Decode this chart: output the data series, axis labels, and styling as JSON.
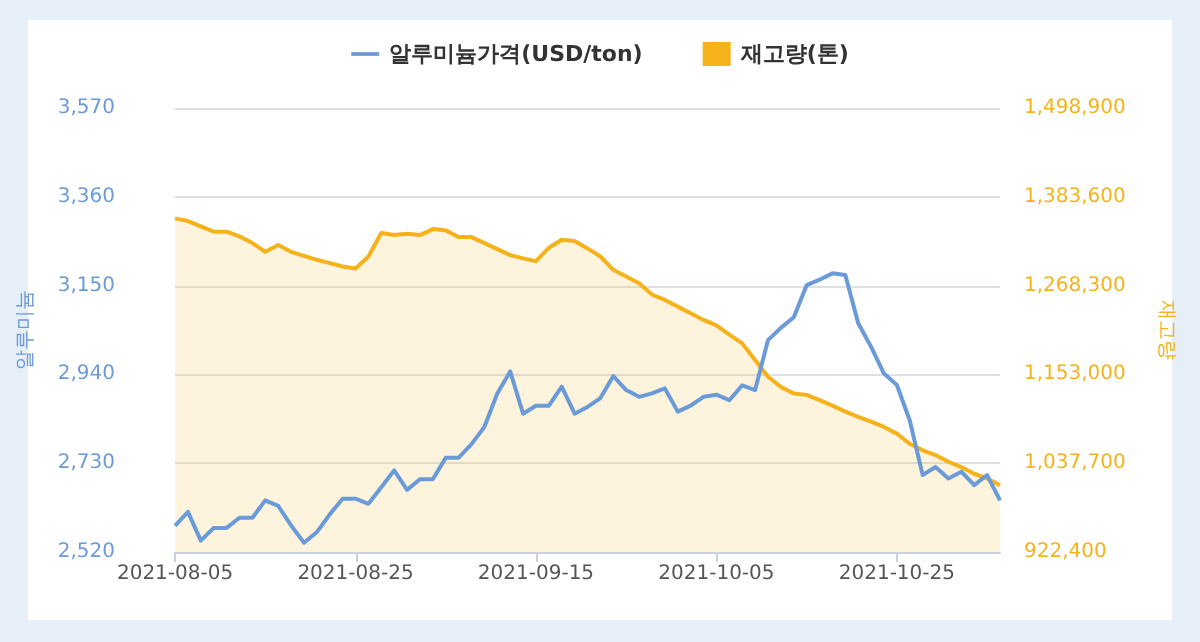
{
  "chart_data": {
    "type": "line",
    "categories": [
      "2021-08-05",
      null,
      null,
      null,
      null,
      null,
      null,
      null,
      null,
      null,
      null,
      null,
      null,
      null,
      "2021-08-25",
      null,
      null,
      null,
      null,
      null,
      null,
      null,
      null,
      null,
      null,
      null,
      null,
      null,
      "2021-09-15",
      null,
      null,
      null,
      null,
      null,
      null,
      null,
      null,
      null,
      null,
      null,
      null,
      null,
      "2021-10-05",
      null,
      null,
      null,
      null,
      null,
      null,
      null,
      null,
      null,
      null,
      null,
      null,
      null,
      "2021-10-25",
      null,
      null,
      null,
      null,
      null,
      null,
      null,
      null
    ],
    "series": [
      {
        "name": "알루미늄가격(USD/ton)",
        "color": "#6a9bd8",
        "values": [
          2582,
          2615,
          2547,
          2577,
          2577,
          2601,
          2601,
          2642,
          2629,
          2583,
          2542,
          2567,
          2609,
          2646,
          2646,
          2634,
          2673,
          2713,
          2667,
          2692,
          2692,
          2743,
          2743,
          2775,
          2816,
          2895,
          2947,
          2847,
          2866,
          2866,
          2911,
          2847,
          2863,
          2884,
          2936,
          2903,
          2887,
          2895,
          2907,
          2852,
          2866,
          2887,
          2892,
          2879,
          2914,
          2903,
          3021,
          3050,
          3075,
          3151,
          3164,
          3179,
          3175,
          3061,
          3005,
          2942,
          2915,
          2831,
          2702,
          2721,
          2694,
          2710,
          2678,
          2702,
          2642
        ]
      },
      {
        "name": "재고량(톤)",
        "type": "area",
        "axis": "y2",
        "color": "#f5b21b",
        "values": [
          1355600,
          1352100,
          1345200,
          1338300,
          1338300,
          1332200,
          1323500,
          1312200,
          1320900,
          1312200,
          1307000,
          1301800,
          1297500,
          1293100,
          1290500,
          1306100,
          1336500,
          1333900,
          1335700,
          1333900,
          1341700,
          1340000,
          1331300,
          1331300,
          1323500,
          1315700,
          1307900,
          1303600,
          1300100,
          1317400,
          1327900,
          1326100,
          1316600,
          1306100,
          1288800,
          1280100,
          1271400,
          1256700,
          1249700,
          1241000,
          1232300,
          1223700,
          1216700,
          1204600,
          1193300,
          1171600,
          1149900,
          1136800,
          1128200,
          1126400,
          1119500,
          1112500,
          1104700,
          1097800,
          1091700,
          1084800,
          1076100,
          1063000,
          1054400,
          1048300,
          1039600,
          1032700,
          1024000,
          1017900,
          1009200
        ]
      }
    ],
    "ylabel": "알루미늄",
    "y2label": "재고량",
    "ylim": [
      2520,
      3570
    ],
    "yticks": [
      {
        "value": 2520,
        "label": "2,520"
      },
      {
        "value": 2730,
        "label": "2,730"
      },
      {
        "value": 2940,
        "label": "2,940"
      },
      {
        "value": 3150,
        "label": "3,150"
      },
      {
        "value": 3360,
        "label": "3,360"
      },
      {
        "value": 3570,
        "label": "3,570"
      }
    ],
    "y2lim": [
      922400,
      1498900
    ],
    "y2ticks": [
      {
        "value": 922400,
        "label": "922,400"
      },
      {
        "value": 1037700,
        "label": "1,037,700"
      },
      {
        "value": 1153000,
        "label": "1,153,000"
      },
      {
        "value": 1268300,
        "label": "1,268,300"
      },
      {
        "value": 1383600,
        "label": "1,383,600"
      },
      {
        "value": 1498900,
        "label": "1,498,900"
      }
    ],
    "grid": "y",
    "legend": "top",
    "marker": "none"
  }
}
